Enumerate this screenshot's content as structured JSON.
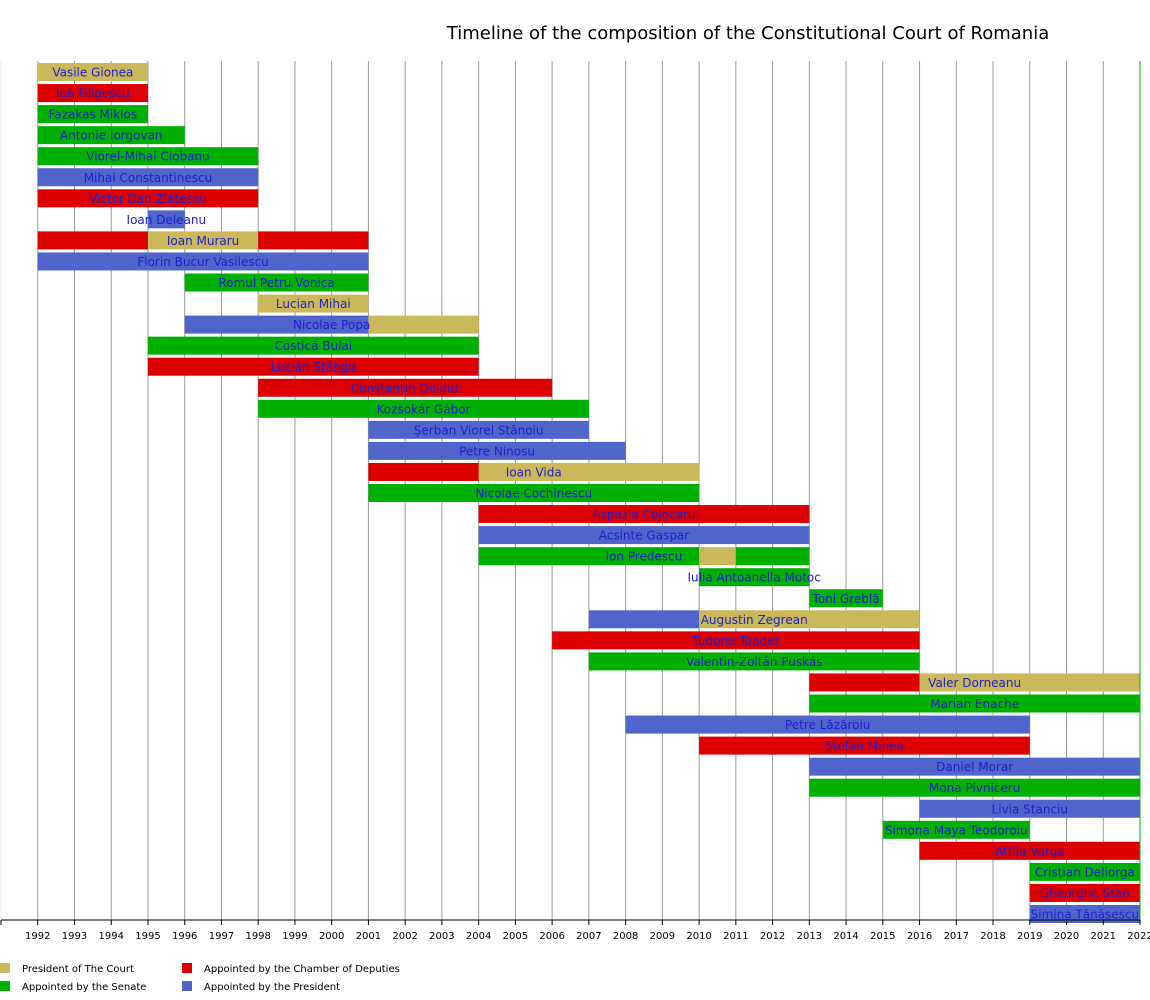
{
  "chart_data": {
    "type": "timeline",
    "title": "Timeline of the composition of the Constitutional Court of Romania",
    "xlim": [
      1991,
      2022
    ],
    "x_ticks": [
      "1992",
      "1993",
      "1994",
      "1995",
      "1996",
      "1997",
      "1998",
      "1999",
      "2000",
      "2001",
      "2002",
      "2003",
      "2004",
      "2005",
      "2006",
      "2007",
      "2008",
      "2009",
      "2010",
      "2011",
      "2012",
      "2013",
      "2014",
      "2015",
      "2016",
      "2017",
      "2018",
      "2019",
      "2020",
      "2021",
      "2022"
    ],
    "grid": true,
    "legend_position": "bottom-left",
    "categories": [
      {
        "key": "president",
        "name": "President of The Court",
        "color": "#cbb85a"
      },
      {
        "key": "chamber",
        "name": "Appointed by the Chamber of Deputies",
        "color": "#dd0000"
      },
      {
        "key": "senate",
        "name": "Appointed by the Senate",
        "color": "#00b000"
      },
      {
        "key": "presidentapp",
        "name": "Appointed by the President",
        "color": "#4f65cc"
      }
    ],
    "members": [
      {
        "name": "Vasile Gionea",
        "segments": [
          {
            "start": 1992,
            "end": 1995,
            "cat": "president"
          }
        ]
      },
      {
        "name": "Ion Filipescu",
        "segments": [
          {
            "start": 1992,
            "end": 1995,
            "cat": "chamber"
          }
        ]
      },
      {
        "name": "Fazakas Miklos",
        "segments": [
          {
            "start": 1992,
            "end": 1995,
            "cat": "senate"
          }
        ]
      },
      {
        "name": "Antonie Iorgovan",
        "segments": [
          {
            "start": 1992,
            "end": 1996,
            "cat": "senate"
          }
        ]
      },
      {
        "name": "Viorel-Mihai Ciobanu",
        "segments": [
          {
            "start": 1992,
            "end": 1998,
            "cat": "senate"
          }
        ]
      },
      {
        "name": "Mihai Constantinescu",
        "segments": [
          {
            "start": 1992,
            "end": 1998,
            "cat": "presidentapp"
          }
        ]
      },
      {
        "name": "Victor-Dan Zlătescu",
        "segments": [
          {
            "start": 1992,
            "end": 1998,
            "cat": "chamber"
          }
        ]
      },
      {
        "name": "Ioan Deleanu",
        "segments": [
          {
            "start": 1995,
            "end": 1996,
            "cat": "presidentapp"
          }
        ]
      },
      {
        "name": "Ioan Muraru",
        "segments": [
          {
            "start": 1992,
            "end": 1995,
            "cat": "chamber"
          },
          {
            "start": 1995,
            "end": 1998,
            "cat": "president"
          },
          {
            "start": 1998,
            "end": 2001,
            "cat": "chamber"
          }
        ]
      },
      {
        "name": "Florin Bucur Vasilescu",
        "segments": [
          {
            "start": 1992,
            "end": 2001,
            "cat": "presidentapp"
          }
        ]
      },
      {
        "name": "Romul Petru Vonica",
        "segments": [
          {
            "start": 1996,
            "end": 2001,
            "cat": "senate"
          }
        ]
      },
      {
        "name": "Lucian Mihai",
        "segments": [
          {
            "start": 1998,
            "end": 2001,
            "cat": "president"
          }
        ]
      },
      {
        "name": "Nicolae Popa",
        "segments": [
          {
            "start": 1996,
            "end": 2001,
            "cat": "presidentapp"
          },
          {
            "start": 2001,
            "end": 2004,
            "cat": "president"
          }
        ]
      },
      {
        "name": "Costică Bulai",
        "segments": [
          {
            "start": 1995,
            "end": 2004,
            "cat": "senate"
          }
        ]
      },
      {
        "name": "Lucian Stângu",
        "segments": [
          {
            "start": 1995,
            "end": 2004,
            "cat": "chamber"
          }
        ]
      },
      {
        "name": "Constantin Doldur",
        "segments": [
          {
            "start": 1998,
            "end": 2006,
            "cat": "chamber"
          }
        ]
      },
      {
        "name": "Kozsokár Gábor",
        "segments": [
          {
            "start": 1998,
            "end": 2007,
            "cat": "senate"
          }
        ]
      },
      {
        "name": "Şerban Viorel Stănoiu",
        "segments": [
          {
            "start": 2001,
            "end": 2007,
            "cat": "presidentapp"
          }
        ]
      },
      {
        "name": "Petre Ninosu",
        "segments": [
          {
            "start": 2001,
            "end": 2008,
            "cat": "presidentapp"
          }
        ]
      },
      {
        "name": "Ioan Vida",
        "segments": [
          {
            "start": 2001,
            "end": 2004,
            "cat": "chamber"
          },
          {
            "start": 2004,
            "end": 2010,
            "cat": "president"
          }
        ]
      },
      {
        "name": "Nicolae Cochinescu",
        "segments": [
          {
            "start": 2001,
            "end": 2010,
            "cat": "senate"
          }
        ]
      },
      {
        "name": "Aspazia Cojocaru",
        "segments": [
          {
            "start": 2004,
            "end": 2013,
            "cat": "chamber"
          }
        ]
      },
      {
        "name": "Acsinte Gaspar",
        "segments": [
          {
            "start": 2004,
            "end": 2013,
            "cat": "presidentapp"
          }
        ]
      },
      {
        "name": "Ion Predescu",
        "segments": [
          {
            "start": 2004,
            "end": 2010,
            "cat": "senate"
          },
          {
            "start": 2010,
            "end": 2011,
            "cat": "president"
          },
          {
            "start": 2011,
            "end": 2013,
            "cat": "senate"
          }
        ]
      },
      {
        "name": "Iulia Antoanella Motoc",
        "segments": [
          {
            "start": 2010,
            "end": 2013,
            "cat": "senate"
          }
        ]
      },
      {
        "name": "Toni Greblă",
        "segments": [
          {
            "start": 2013,
            "end": 2015,
            "cat": "senate"
          }
        ]
      },
      {
        "name": "Augustin Zegrean",
        "segments": [
          {
            "start": 2007,
            "end": 2010,
            "cat": "presidentapp"
          },
          {
            "start": 2010,
            "end": 2016,
            "cat": "president"
          }
        ]
      },
      {
        "name": "Tudorel Toader",
        "segments": [
          {
            "start": 2006,
            "end": 2016,
            "cat": "chamber"
          }
        ]
      },
      {
        "name": "Valentin-Zoltán Puskás",
        "segments": [
          {
            "start": 2007,
            "end": 2016,
            "cat": "senate"
          }
        ]
      },
      {
        "name": "Valer Dorneanu",
        "segments": [
          {
            "start": 2013,
            "end": 2016,
            "cat": "chamber"
          },
          {
            "start": 2016,
            "end": 2022,
            "cat": "president"
          }
        ]
      },
      {
        "name": "Marian Enache",
        "segments": [
          {
            "start": 2013,
            "end": 2022,
            "cat": "senate"
          }
        ]
      },
      {
        "name": "Petre Lăzăroiu",
        "segments": [
          {
            "start": 2008,
            "end": 2019,
            "cat": "presidentapp"
          }
        ]
      },
      {
        "name": "Ştefan Minea",
        "segments": [
          {
            "start": 2010,
            "end": 2019,
            "cat": "chamber"
          }
        ]
      },
      {
        "name": "Daniel Morar",
        "segments": [
          {
            "start": 2013,
            "end": 2022,
            "cat": "presidentapp"
          }
        ]
      },
      {
        "name": "Mona Pivniceru",
        "segments": [
          {
            "start": 2013,
            "end": 2022,
            "cat": "senate"
          }
        ]
      },
      {
        "name": "Livia Stanciu",
        "segments": [
          {
            "start": 2016,
            "end": 2022,
            "cat": "presidentapp"
          }
        ]
      },
      {
        "name": "Simona Maya Teodoroiu",
        "segments": [
          {
            "start": 2015,
            "end": 2019,
            "cat": "senate"
          }
        ]
      },
      {
        "name": "Attila Varga",
        "segments": [
          {
            "start": 2016,
            "end": 2022,
            "cat": "chamber"
          }
        ]
      },
      {
        "name": "Cristian Deliorga",
        "segments": [
          {
            "start": 2019,
            "end": 2022,
            "cat": "senate"
          }
        ]
      },
      {
        "name": "Gheorghe Stan",
        "segments": [
          {
            "start": 2019,
            "end": 2022,
            "cat": "chamber"
          }
        ]
      },
      {
        "name": "Simina Tănăsescu",
        "segments": [
          {
            "start": 2019,
            "end": 2022,
            "cat": "presidentapp"
          }
        ]
      }
    ]
  }
}
